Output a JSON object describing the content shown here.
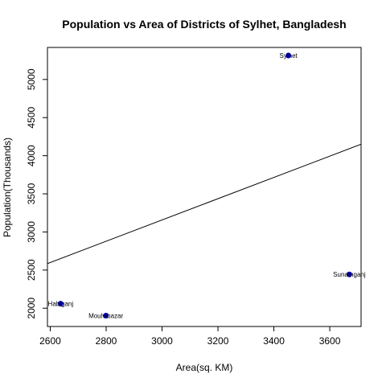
{
  "chart_data": {
    "type": "scatter",
    "title": "Population vs Area of Districts of Sylhet, Bangladesh",
    "xlabel": "Area(sq. KM)",
    "ylabel": "Population(Thousands)",
    "xlim": [
      2590,
      3712
    ],
    "ylim": [
      1760,
      5420
    ],
    "xticks": [
      2600,
      2800,
      3000,
      3200,
      3400,
      3600
    ],
    "yticks": [
      2000,
      2500,
      3000,
      3500,
      4000,
      4500,
      5000
    ],
    "grid": false,
    "point_color": "#0000CD",
    "line_color": "#000000",
    "points": [
      {
        "label": "Habiganj",
        "x": 2637,
        "y": 2059
      },
      {
        "label": "Moulvibazar",
        "x": 2799,
        "y": 1902
      },
      {
        "label": "Sylhet",
        "x": 3452,
        "y": 5314
      },
      {
        "label": "Sunamganj",
        "x": 3670,
        "y": 2443
      }
    ],
    "regression_line": {
      "intercept": -1027,
      "slope": 1.3948
    }
  }
}
